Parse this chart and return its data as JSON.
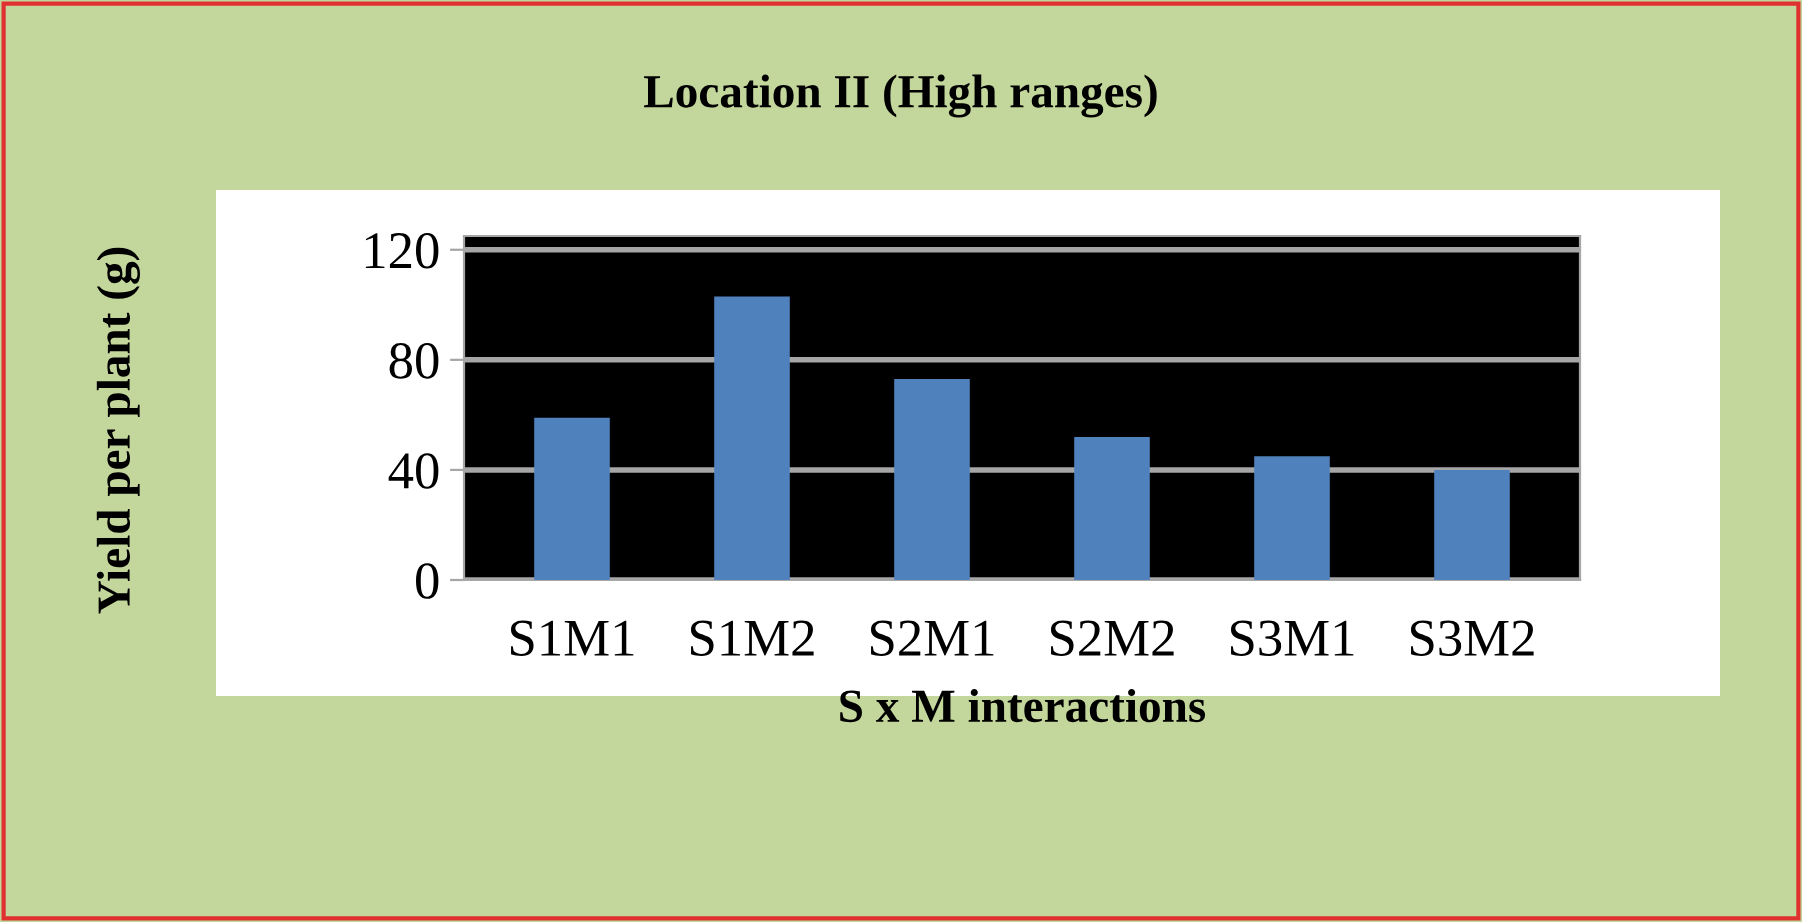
{
  "chart_data": {
    "type": "bar",
    "title": "Location II (High ranges)",
    "xlabel": "S x M interactions",
    "ylabel": "Yield per plant (g)",
    "categories": [
      "S1M1",
      "S1M2",
      "S2M1",
      "S2M2",
      "S3M1",
      "S3M2"
    ],
    "values": [
      59,
      103,
      73,
      52,
      45,
      40
    ],
    "color": "#4f81bd",
    "ylim": [
      0,
      125
    ],
    "yticks": [
      0,
      40,
      80,
      120
    ],
    "grid": "y"
  }
}
